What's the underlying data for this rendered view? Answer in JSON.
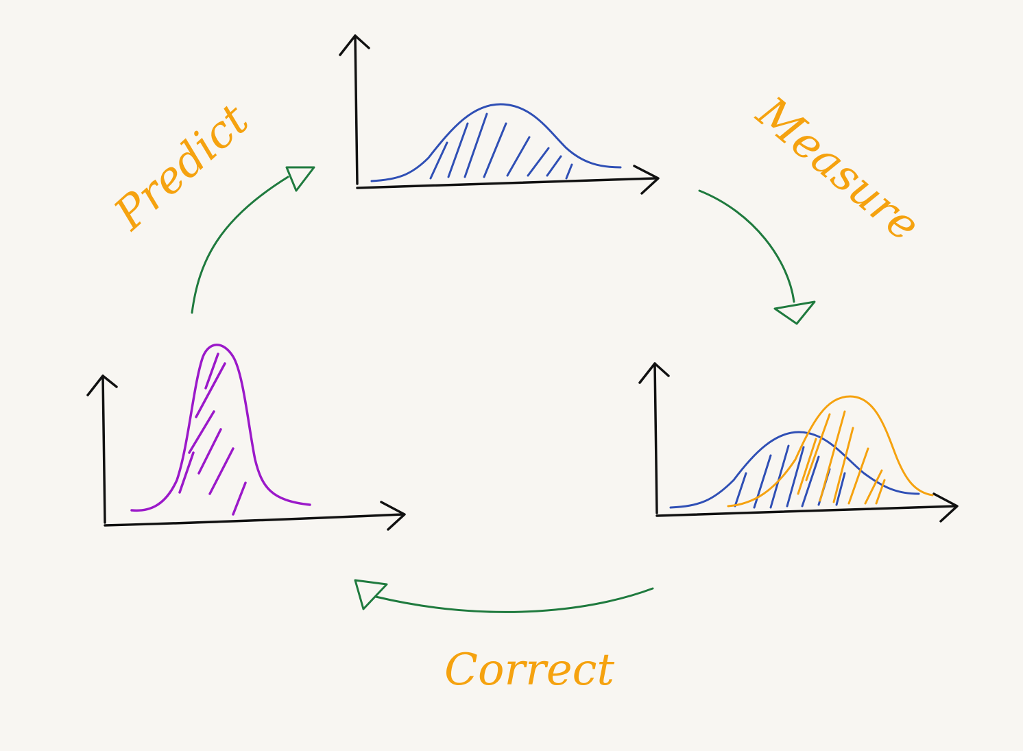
{
  "diagram": {
    "labels": {
      "predict": "Predict",
      "measure": "Measure",
      "correct": "Correct"
    },
    "colors": {
      "background": "#f8f6f2",
      "axes": "#111111",
      "prior_curve": "#2f4fb5",
      "posterior_curve": "#9b19c9",
      "measurement_curve": "#f5a20f",
      "arrows": "#1f7a3e",
      "labels": "#f5a20f"
    }
  }
}
